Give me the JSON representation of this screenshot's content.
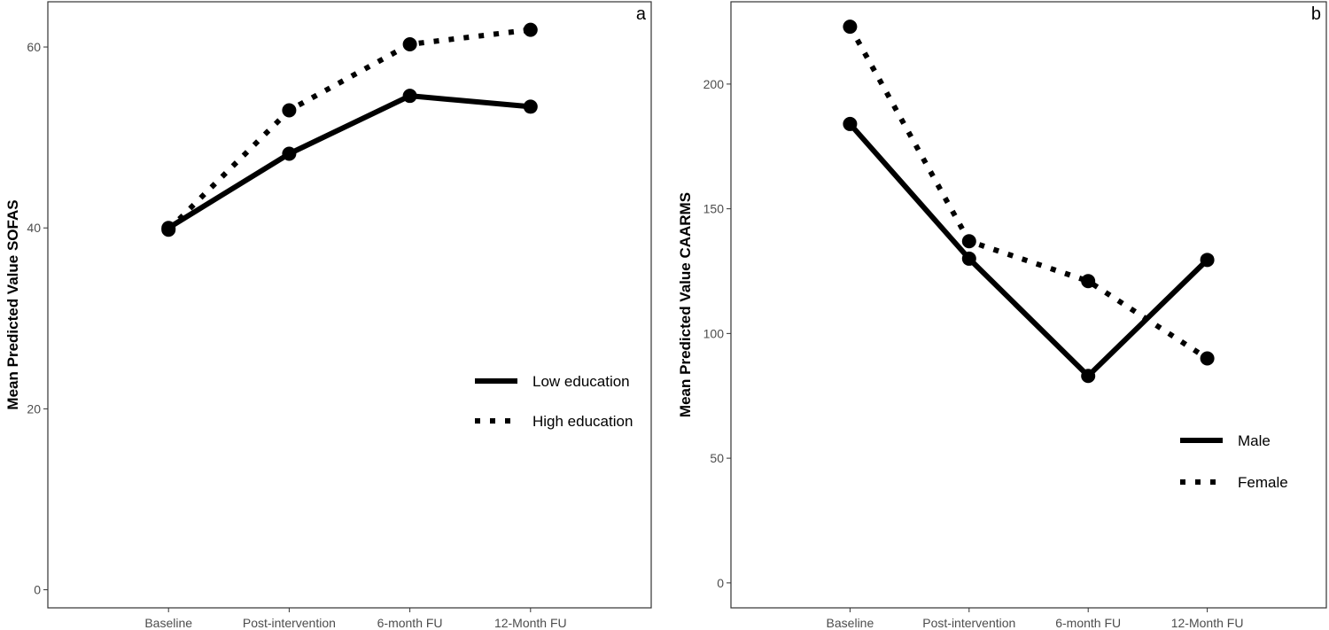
{
  "chart_data": [
    {
      "type": "line",
      "panel_tag": "a",
      "ylabel": "Mean Predicted Value SOFAS",
      "xlabel": "",
      "categories": [
        "Baseline",
        "Post-intervention",
        "6-month FU",
        "12-Month FU"
      ],
      "ylim": [
        -2,
        65
      ],
      "yticks": [
        0,
        20,
        40,
        60
      ],
      "grid": false,
      "legend_position": "right",
      "series": [
        {
          "name": "Low education",
          "style": "solid",
          "values": [
            40.0,
            48.2,
            54.6,
            53.4
          ]
        },
        {
          "name": "High education",
          "style": "dotted",
          "values": [
            39.8,
            53.0,
            60.3,
            61.9
          ]
        }
      ]
    },
    {
      "type": "line",
      "panel_tag": "b",
      "ylabel": "Mean Predicted Value CAARMS",
      "xlabel": "",
      "categories": [
        "Baseline",
        "Post-intervention",
        "6-month FU",
        "12-Month FU"
      ],
      "ylim": [
        -10,
        233
      ],
      "yticks": [
        0,
        50,
        100,
        150,
        200
      ],
      "grid": false,
      "legend_position": "bottom-right",
      "series": [
        {
          "name": "Male",
          "style": "solid",
          "values": [
            184,
            130,
            83,
            129.5
          ]
        },
        {
          "name": "Female",
          "style": "dotted",
          "values": [
            223,
            137,
            121,
            90
          ]
        }
      ]
    }
  ],
  "colors": {
    "line": "#000000",
    "axis_text": "#4d4d4d",
    "panel_border": "#333333"
  }
}
